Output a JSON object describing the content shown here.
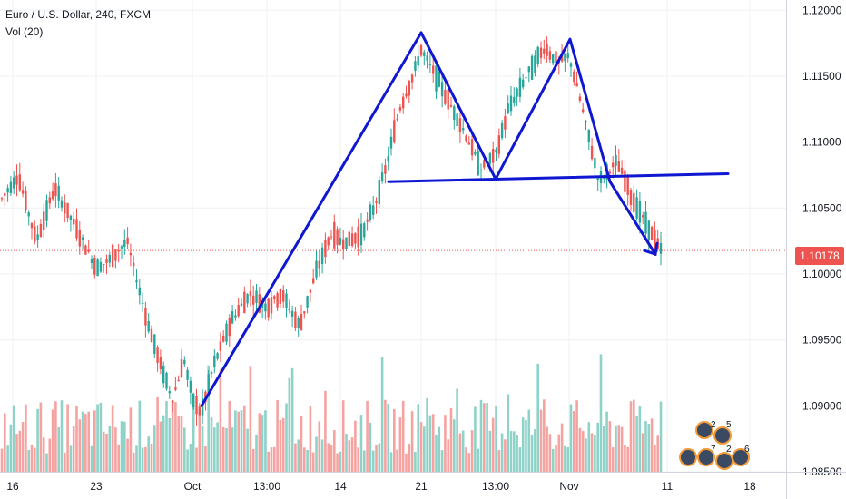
{
  "header": {
    "symbol_line": "Euro / U.S. Dollar, 240, FXCM",
    "indicator": "Vol (20)"
  },
  "colors": {
    "up": "#26a69a",
    "down": "#ef5350",
    "up_volume": "#8fd2c8",
    "down_volume": "#f5a3a1",
    "drawing": "#0f17d1",
    "last_price": "#ef5350",
    "grid": "#eef0f3",
    "axis_text": "#131722"
  },
  "price_tag": "1.10178",
  "event_badges": {
    "top": [
      "2",
      "5"
    ],
    "bottom": [
      "7",
      "2",
      "6"
    ]
  },
  "chart_data": {
    "type": "candlestick",
    "title": "Euro / U.S. Dollar, 240, FXCM",
    "y_ticks": [
      "1.12000",
      "1.11500",
      "1.11000",
      "1.10500",
      "1.10000",
      "1.09500",
      "1.09000",
      "1.08500"
    ],
    "ylim": [
      1.085,
      1.1205
    ],
    "x_ticks": [
      "16",
      "23",
      "Oct",
      "13:00",
      "14",
      "21",
      "13:00",
      "Nov",
      "11",
      "18"
    ],
    "last_price": 1.10178,
    "grid": true,
    "ohlc_anchors": [
      {
        "x": "16",
        "close": 1.1055
      },
      {
        "x": "17",
        "close": 1.1075
      },
      {
        "x": "19",
        "close": 1.1025
      },
      {
        "x": "20",
        "close": 1.1065
      },
      {
        "x": "22",
        "close": 1.104
      },
      {
        "x": "23",
        "close": 1.1005
      },
      {
        "x": "24",
        "close": 1.101
      },
      {
        "x": "25",
        "close": 1.1025
      },
      {
        "x": "26",
        "close": 1.097
      },
      {
        "x": "27",
        "close": 1.0935
      },
      {
        "x": "28",
        "close": 1.0905
      },
      {
        "x": "29",
        "close": 1.0935
      },
      {
        "x": "30",
        "close": 1.0905
      },
      {
        "x": "Oct",
        "close": 1.0895
      },
      {
        "x": "2",
        "close": 1.093
      },
      {
        "x": "3",
        "close": 1.0965
      },
      {
        "x": "4",
        "close": 1.0985
      },
      {
        "x": "5",
        "close": 1.0975
      },
      {
        "x": "13:00",
        "close": 1.0985
      },
      {
        "x": "7",
        "close": 1.096
      },
      {
        "x": "8",
        "close": 1.1005
      },
      {
        "x": "9",
        "close": 1.103
      },
      {
        "x": "10",
        "close": 1.1025
      },
      {
        "x": "11",
        "close": 1.1025
      },
      {
        "x": "14",
        "close": 1.103
      },
      {
        "x": "15",
        "close": 1.105
      },
      {
        "x": "16",
        "close": 1.108
      },
      {
        "x": "17",
        "close": 1.1125
      },
      {
        "x": "18",
        "close": 1.115
      },
      {
        "x": "21",
        "close": 1.117
      },
      {
        "x": "22",
        "close": 1.115
      },
      {
        "x": "23",
        "close": 1.113
      },
      {
        "x": "24",
        "close": 1.111
      },
      {
        "x": "25",
        "close": 1.108
      },
      {
        "x": "13:00",
        "close": 1.109
      },
      {
        "x": "28",
        "close": 1.1125
      },
      {
        "x": "29",
        "close": 1.115
      },
      {
        "x": "30",
        "close": 1.1172
      },
      {
        "x": "31",
        "close": 1.116
      },
      {
        "x": "Nov",
        "close": 1.1165
      },
      {
        "x": "4",
        "close": 1.113
      },
      {
        "x": "5",
        "close": 1.107
      },
      {
        "x": "6",
        "close": 1.1085
      },
      {
        "x": "7",
        "close": 1.106
      },
      {
        "x": "8",
        "close": 1.104
      },
      {
        "x": "9",
        "close": 1.10178
      }
    ],
    "drawings": [
      {
        "name": "rally-trendline",
        "points": [
          [
            1.09,
            "Oct"
          ],
          [
            1.1183,
            "21"
          ]
        ]
      },
      {
        "name": "left-shoulder-to-trough",
        "points": [
          [
            1.1183,
            "21"
          ],
          [
            1.1072,
            "13:00"
          ]
        ]
      },
      {
        "name": "trough-to-right-peak",
        "points": [
          [
            1.1072,
            "13:00"
          ],
          [
            1.1178,
            "Nov"
          ]
        ]
      },
      {
        "name": "right-peak-down",
        "points": [
          [
            1.1178,
            "Nov"
          ],
          [
            1.107,
            "5"
          ]
        ]
      },
      {
        "name": "neckline",
        "points": [
          [
            1.107,
            "16"
          ],
          [
            1.1076,
            "18"
          ]
        ]
      },
      {
        "name": "target-arrow",
        "points": [
          [
            1.107,
            "5"
          ],
          [
            1.1015,
            "11"
          ]
        ]
      }
    ]
  }
}
